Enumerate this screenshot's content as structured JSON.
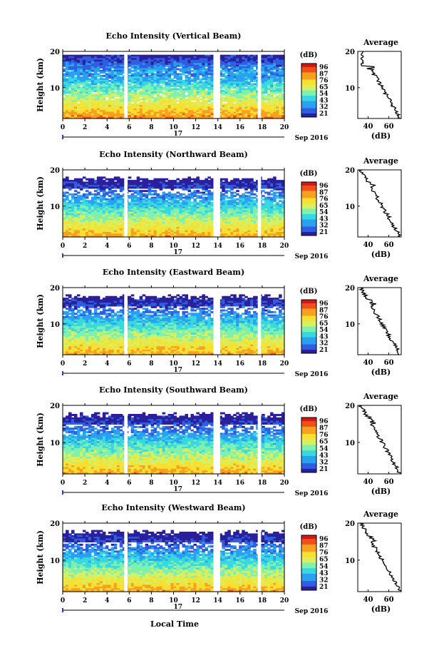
{
  "chart_data": [
    {
      "type": "heatmap",
      "title": "Echo Intensity (Vertical Beam)",
      "ylabel": "Height (km)",
      "yticks": [
        "20",
        "10"
      ],
      "xticks": [
        "0",
        "2",
        "4",
        "6",
        "8",
        "10",
        "12",
        "14",
        "16",
        "18",
        "20"
      ],
      "day_label": "17",
      "date_label": "Sep 2016",
      "colorbar": {
        "unit": "(dB)",
        "labels": [
          "96",
          "87",
          "76",
          "65",
          "54",
          "43",
          "32",
          "21"
        ]
      },
      "average": {
        "title": "Average",
        "xlabel": "(dB)",
        "xticks": [
          "40",
          "60"
        ],
        "yticks": [
          "20",
          "10"
        ]
      }
    },
    {
      "type": "heatmap",
      "title": "Echo Intensity (Northward Beam)",
      "ylabel": "Height (km)",
      "yticks": [
        "20",
        "10"
      ],
      "xticks": [
        "0",
        "2",
        "4",
        "6",
        "8",
        "10",
        "12",
        "14",
        "16",
        "18",
        "20"
      ],
      "day_label": "17",
      "date_label": "Sep 2016",
      "colorbar": {
        "unit": "(dB)",
        "labels": [
          "96",
          "87",
          "76",
          "65",
          "54",
          "43",
          "32",
          "21"
        ]
      },
      "average": {
        "title": "Average",
        "xlabel": "(dB)",
        "xticks": [
          "40",
          "60"
        ],
        "yticks": [
          "20",
          "10"
        ]
      }
    },
    {
      "type": "heatmap",
      "title": "Echo Intensity (Eastward Beam)",
      "ylabel": "Height (km)",
      "yticks": [
        "20",
        "10"
      ],
      "xticks": [
        "0",
        "2",
        "4",
        "6",
        "8",
        "10",
        "12",
        "14",
        "16",
        "18",
        "20"
      ],
      "day_label": "17",
      "date_label": "Sep 2016",
      "colorbar": {
        "unit": "(dB)",
        "labels": [
          "96",
          "87",
          "76",
          "65",
          "54",
          "43",
          "32",
          "21"
        ]
      },
      "average": {
        "title": "Average",
        "xlabel": "(dB)",
        "xticks": [
          "40",
          "60"
        ],
        "yticks": [
          "20",
          "10"
        ]
      }
    },
    {
      "type": "heatmap",
      "title": "Echo Intensity (Southward Beam)",
      "ylabel": "Height (km)",
      "yticks": [
        "20",
        "10"
      ],
      "xticks": [
        "0",
        "2",
        "4",
        "6",
        "8",
        "10",
        "12",
        "14",
        "16",
        "18",
        "20"
      ],
      "day_label": "17",
      "date_label": "Sep 2016",
      "colorbar": {
        "unit": "(dB)",
        "labels": [
          "96",
          "87",
          "76",
          "65",
          "54",
          "43",
          "32",
          "21"
        ]
      },
      "average": {
        "title": "Average",
        "xlabel": "(dB)",
        "xticks": [
          "40",
          "60"
        ],
        "yticks": [
          "20",
          "10"
        ]
      }
    },
    {
      "type": "heatmap",
      "title": "Echo Intensity (Westward Beam)",
      "ylabel": "Height (km)",
      "yticks": [
        "20",
        "10"
      ],
      "xticks": [
        "0",
        "2",
        "4",
        "6",
        "8",
        "10",
        "12",
        "14",
        "16",
        "18",
        "20"
      ],
      "day_label": "17",
      "date_label": "Sep 2016",
      "colorbar": {
        "unit": "(dB)",
        "labels": [
          "96",
          "87",
          "76",
          "65",
          "54",
          "43",
          "32",
          "21"
        ]
      },
      "average": {
        "title": "Average",
        "xlabel": "(dB)",
        "xticks": [
          "40",
          "60"
        ],
        "yticks": [
          "20",
          "10"
        ]
      }
    }
  ],
  "figure": {
    "xlabel": "Local Time",
    "colormap": [
      "#2a1f9c",
      "#2f5fe0",
      "#2aa0f0",
      "#38d8e0",
      "#7ef0b0",
      "#d8f060",
      "#f8e030",
      "#f8a020",
      "#f05018",
      "#d01818"
    ],
    "data_gaps_hours": [
      [
        5.55,
        5.85
      ],
      [
        13.6,
        14.2
      ],
      [
        17.6,
        17.9
      ]
    ]
  }
}
